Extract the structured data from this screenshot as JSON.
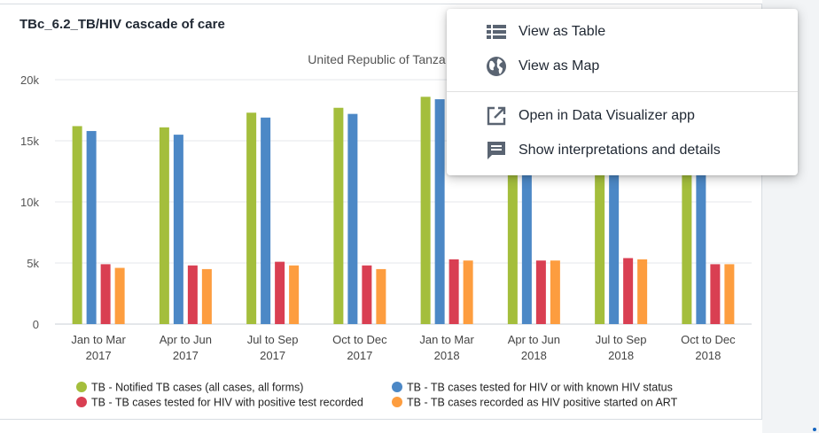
{
  "card": {
    "title": "TBc_6.2_TB/HIV cascade of care",
    "subtitle": "United Republic of Tanza"
  },
  "menu": {
    "items": [
      {
        "label": "View as Table",
        "icon": "table-icon"
      },
      {
        "label": "View as Map",
        "icon": "globe-icon"
      },
      {
        "label": "Open in Data Visualizer app",
        "icon": "open-external-icon"
      },
      {
        "label": "Show interpretations and details",
        "icon": "chat-icon"
      }
    ]
  },
  "chart_data": {
    "type": "bar",
    "categories": [
      [
        "Jan to Mar",
        "2017"
      ],
      [
        "Apr to Jun",
        "2017"
      ],
      [
        "Jul to Sep",
        "2017"
      ],
      [
        "Oct to Dec",
        "2017"
      ],
      [
        "Jan to Mar",
        "2018"
      ],
      [
        "Apr to Jun",
        "2018"
      ],
      [
        "Jul to Sep",
        "2018"
      ],
      [
        "Oct to Dec",
        "2018"
      ]
    ],
    "ylim": [
      0,
      20000
    ],
    "yticks": [
      0,
      5000,
      10000,
      15000,
      20000
    ],
    "ytick_labels": [
      "0",
      "5k",
      "10k",
      "15k",
      "20k"
    ],
    "grid": true,
    "legend_position": "bottom",
    "series": [
      {
        "name": "TB - Notified TB cases (all cases, all forms)",
        "color": "#a4be3c",
        "values": [
          16200,
          16100,
          17300,
          17700,
          18600,
          18500,
          18400,
          18300
        ]
      },
      {
        "name": "TB - TB cases tested for HIV or with known HIV status",
        "color": "#4c88c6",
        "values": [
          15800,
          15500,
          16900,
          17200,
          18400,
          18200,
          18100,
          18000
        ]
      },
      {
        "name": "TB - TB cases tested for HIV with positive test recorded",
        "color": "#d93f52",
        "values": [
          4900,
          4800,
          5100,
          4800,
          5300,
          5200,
          5400,
          4900
        ]
      },
      {
        "name": "TB - TB cases recorded as HIV positive started on ART",
        "color": "#fd9d3f",
        "values": [
          4600,
          4500,
          4800,
          4500,
          5200,
          5200,
          5300,
          4900
        ]
      }
    ]
  }
}
